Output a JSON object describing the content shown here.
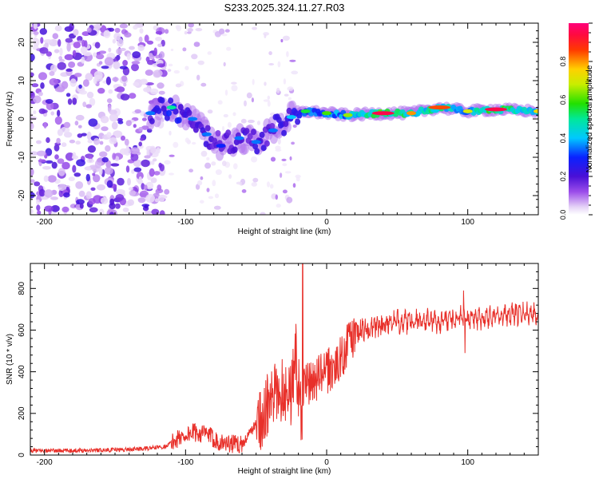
{
  "title": "S233.2025.324.11.27.R03",
  "colors": {
    "snr_line": "#e8302a",
    "axis": "#000000",
    "background": "#ffffff"
  },
  "chart_data": [
    {
      "type": "heatmap",
      "name": "spectrogram",
      "xlabel": "Height of straight line (km)",
      "ylabel": "Frequency (Hz)",
      "xlim": [
        -210,
        150
      ],
      "ylim": [
        -25,
        25
      ],
      "xticks": [
        -200,
        -100,
        0,
        100
      ],
      "yticks": [
        -20,
        -10,
        0,
        10,
        20
      ],
      "colorbar": {
        "label": "Normalized spectral amplitude",
        "range": [
          0,
          1
        ],
        "ticks": [
          "0.0",
          "0.2",
          "0.4",
          "0.6",
          "0.8"
        ],
        "tick_values": [
          0,
          0.2,
          0.4,
          0.6,
          0.8
        ],
        "colormap": "rainbow (white-violet-blue-cyan-green-yellow-red-magenta)"
      },
      "ridge": {
        "description": "dominant frequency track vs height",
        "points": [
          {
            "x": -125,
            "y": 1.5,
            "amp": 0.35
          },
          {
            "x": -110,
            "y": 3.0,
            "amp": 0.5
          },
          {
            "x": -95,
            "y": 0.0,
            "amp": 0.35
          },
          {
            "x": -85,
            "y": -4.0,
            "amp": 0.35
          },
          {
            "x": -75,
            "y": -7.0,
            "amp": 0.3
          },
          {
            "x": -62,
            "y": -5.0,
            "amp": 0.35
          },
          {
            "x": -50,
            "y": -6.0,
            "amp": 0.35
          },
          {
            "x": -38,
            "y": -3.0,
            "amp": 0.35
          },
          {
            "x": -25,
            "y": 0.5,
            "amp": 0.4
          },
          {
            "x": -15,
            "y": 2.0,
            "amp": 0.55
          },
          {
            "x": 0,
            "y": 1.5,
            "amp": 0.6
          },
          {
            "x": 15,
            "y": 1.0,
            "amp": 0.65
          },
          {
            "x": 40,
            "y": 1.5,
            "amp": 0.95
          },
          {
            "x": 60,
            "y": 1.5,
            "amp": 0.8
          },
          {
            "x": 80,
            "y": 3.0,
            "amp": 0.85
          },
          {
            "x": 100,
            "y": 2.0,
            "amp": 0.7
          },
          {
            "x": 120,
            "y": 2.5,
            "amp": 0.95
          },
          {
            "x": 150,
            "y": 2.0,
            "amp": 0.75
          }
        ]
      },
      "noise_region": {
        "x_range": [
          -210,
          -115
        ],
        "y_range": [
          -25,
          25
        ],
        "amp": 0.2
      }
    },
    {
      "type": "line",
      "name": "snr",
      "xlabel": "Height of straight line (km)",
      "ylabel": "SNR (10 * v/v)",
      "xlim": [
        -210,
        150
      ],
      "ylim": [
        0,
        920
      ],
      "xticks": [
        -200,
        -100,
        0,
        100
      ],
      "yticks": [
        0,
        200,
        400,
        600,
        800
      ],
      "series": [
        {
          "name": "SNR",
          "x": [
            -210,
            -180,
            -150,
            -130,
            -115,
            -105,
            -95,
            -85,
            -75,
            -60,
            -50,
            -45,
            -40,
            -35,
            -30,
            -25,
            -22,
            -20,
            -18,
            -15,
            -10,
            -5,
            0,
            5,
            10,
            15,
            20,
            25,
            30,
            40,
            50,
            60,
            70,
            80,
            90,
            95,
            100,
            110,
            120,
            130,
            140,
            150
          ],
          "values": [
            20,
            22,
            25,
            30,
            40,
            80,
            110,
            100,
            60,
            50,
            150,
            200,
            250,
            300,
            320,
            300,
            500,
            320,
            200,
            330,
            350,
            380,
            400,
            420,
            460,
            540,
            580,
            600,
            610,
            630,
            640,
            640,
            650,
            640,
            655,
            660,
            650,
            660,
            670,
            675,
            680,
            685
          ]
        }
      ],
      "annotations": [
        {
          "x": -17,
          "y": 920,
          "label": "spike"
        },
        {
          "x": 97,
          "y": 790,
          "label": "spike"
        },
        {
          "x": 98,
          "y": 490,
          "label": "dip"
        }
      ]
    }
  ]
}
